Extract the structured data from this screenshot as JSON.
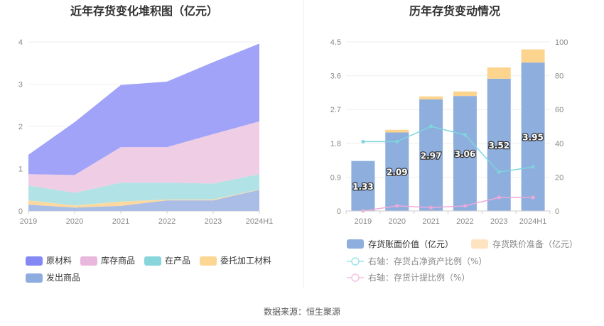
{
  "source_text": "数据来源：恒生聚源",
  "chart_data": [
    {
      "type": "area",
      "stacked": true,
      "title": "近年存货变化堆积图（亿元）",
      "x": [
        "2019",
        "2020",
        "2021",
        "2022",
        "2023",
        "2024H1"
      ],
      "yticks": [
        "0",
        "1",
        "2",
        "3",
        "4"
      ],
      "ylim": [
        0,
        4
      ],
      "grid": true,
      "series": [
        {
          "name": "发出商品",
          "color": "#a9bde6",
          "values": [
            0.15,
            0.08,
            0.12,
            0.25,
            0.25,
            0.5
          ]
        },
        {
          "name": "委托加工材料",
          "color": "#fdd9a0",
          "values": [
            0.1,
            0.05,
            0.1,
            0.02,
            0.02,
            0.01
          ]
        },
        {
          "name": "在产品",
          "color": "#b1e3e6",
          "values": [
            0.35,
            0.3,
            0.45,
            0.4,
            0.38,
            0.36
          ]
        },
        {
          "name": "库存商品",
          "color": "#efcde5",
          "values": [
            0.27,
            0.42,
            0.84,
            0.84,
            1.17,
            1.25
          ]
        },
        {
          "name": "原材料",
          "color": "#a0a3f7",
          "values": [
            0.46,
            1.25,
            1.47,
            1.55,
            1.7,
            1.84
          ]
        }
      ],
      "legend": [
        {
          "name": "原材料",
          "color": "#8388f5"
        },
        {
          "name": "库存商品",
          "color": "#e9b7dc"
        },
        {
          "name": "在产品",
          "color": "#88d6db"
        },
        {
          "name": "委托加工材料",
          "color": "#fcd794"
        },
        {
          "name": "发出商品",
          "color": "#8eadde"
        }
      ],
      "legend_position": "bottom"
    },
    {
      "type": "bar",
      "title": "历年存货变动情况",
      "categories": [
        "2019",
        "2020",
        "2021",
        "2022",
        "2023",
        "2024H1"
      ],
      "ylim_left": [
        0,
        4.5
      ],
      "yticks_left": [
        "0",
        "0.9",
        "1.8",
        "2.7",
        "3.6",
        "4.5"
      ],
      "ylim_right": [
        0,
        100
      ],
      "yticks_right": [
        "0",
        "20",
        "40",
        "60",
        "80",
        "100"
      ],
      "grid": true,
      "series": [
        {
          "name": "存货账面价值（亿元）",
          "type": "bar",
          "stack": "inv",
          "axis": "left",
          "color": "#8eaede",
          "values": [
            1.33,
            2.09,
            2.97,
            3.06,
            3.52,
            3.95
          ],
          "labels": [
            "1.33",
            "2.09",
            "2.97",
            "3.06",
            "3.52",
            "3.95"
          ]
        },
        {
          "name": "存货跌价准备（亿元）",
          "type": "bar",
          "stack": "inv",
          "axis": "left",
          "color": "#fcd48e",
          "values": [
            0,
            0.07,
            0.08,
            0.12,
            0.3,
            0.35
          ]
        },
        {
          "name": "右轴：存货占净资产比例（%）",
          "type": "line",
          "axis": "right",
          "color": "#7dd6dc",
          "values": [
            41,
            41,
            50,
            45,
            23,
            26
          ]
        },
        {
          "name": "右轴：存货计提比例（%）",
          "type": "line",
          "axis": "right",
          "color": "#efa9d8",
          "values": [
            0,
            3,
            2,
            3,
            8,
            8
          ]
        }
      ],
      "legend": [
        {
          "name": "存货账面价值（亿元）",
          "color": "#8eaede",
          "kind": "box"
        },
        {
          "name": "存货跌价准备（亿元）",
          "color": "#fde4c0",
          "kind": "box"
        },
        {
          "name": "右轴：存货占净资产比例（%）",
          "color": "#9ee3e7",
          "kind": "line"
        },
        {
          "name": "右轴：存货计提比例（%）",
          "color": "#f2c4e3",
          "kind": "line"
        }
      ],
      "legend_position": "bottom"
    }
  ]
}
